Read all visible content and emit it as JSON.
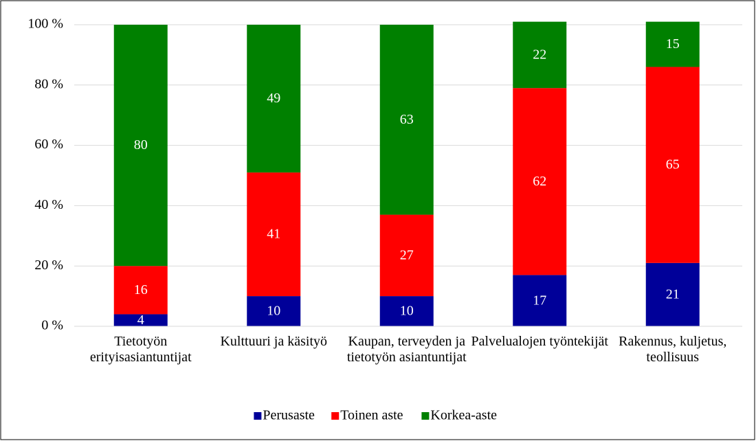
{
  "chart_data": {
    "type": "stacked_bar",
    "categories": [
      "Tietotyön erityisasiantuntijat",
      "Kulttuuri ja käsityö",
      "Kaupan, terveyden ja tietotyön asiantuntijat",
      "Palvelualojen työntekijät",
      "Rakennus, kuljetus, teollisuus"
    ],
    "series": [
      {
        "name": "Perusaste",
        "color": "#000099",
        "values": [
          4,
          10,
          10,
          17,
          21
        ]
      },
      {
        "name": "Toinen aste",
        "color": "#ff0000",
        "values": [
          16,
          41,
          27,
          62,
          65
        ]
      },
      {
        "name": "Korkea-aste",
        "color": "#008000",
        "values": [
          80,
          49,
          63,
          22,
          15
        ]
      }
    ],
    "ylim": [
      0,
      100
    ],
    "yticks": [
      {
        "value": 0,
        "label": "0 %"
      },
      {
        "value": 20,
        "label": "20 %"
      },
      {
        "value": 40,
        "label": "40 %"
      },
      {
        "value": 60,
        "label": "60 %"
      },
      {
        "value": 80,
        "label": "80 %"
      },
      {
        "value": 100,
        "label": "100 %"
      }
    ],
    "grid": true,
    "legend": "bottom"
  }
}
